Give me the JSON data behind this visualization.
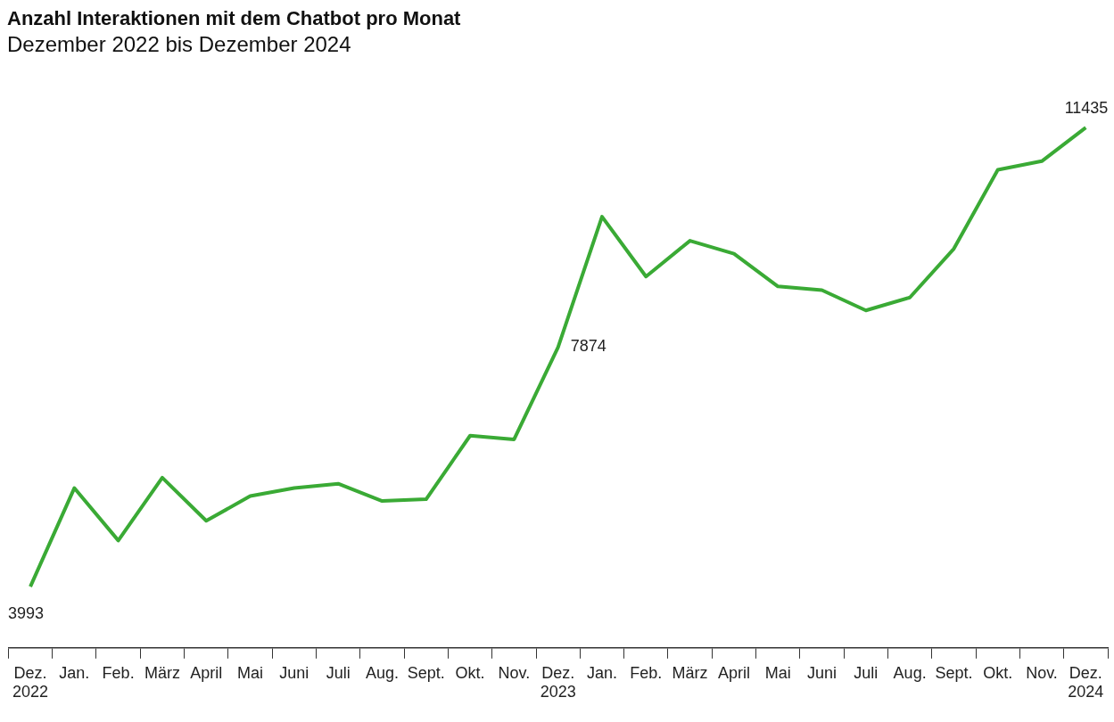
{
  "chart_data": {
    "type": "line",
    "title": "Anzahl Interaktionen mit dem Chatbot pro Monat",
    "subtitle": "Dezember 2022 bis Dezember 2024",
    "categories": [
      "Dez.\n2022",
      "Jan.",
      "Feb.",
      "März",
      "April",
      "Mai",
      "Juni",
      "Juli",
      "Aug.",
      "Sept.",
      "Okt.",
      "Nov.",
      "Dez.\n2023",
      "Jan.",
      "Feb.",
      "März",
      "April",
      "Mai",
      "Juni",
      "Juli",
      "Aug.",
      "Sept.",
      "Okt.",
      "Nov.",
      "Dez.\n2024"
    ],
    "values": [
      3993,
      5590,
      4740,
      5760,
      5060,
      5460,
      5590,
      5660,
      5380,
      5410,
      6440,
      6380,
      7874,
      9990,
      9020,
      9600,
      9390,
      8860,
      8800,
      8470,
      8680,
      9470,
      10750,
      10890,
      11435
    ],
    "value_labels": [
      "3993",
      null,
      null,
      null,
      null,
      null,
      null,
      null,
      null,
      null,
      null,
      null,
      "7874",
      null,
      null,
      null,
      null,
      null,
      null,
      null,
      null,
      null,
      null,
      null,
      "11435"
    ],
    "color": "#3aaa35"
  }
}
